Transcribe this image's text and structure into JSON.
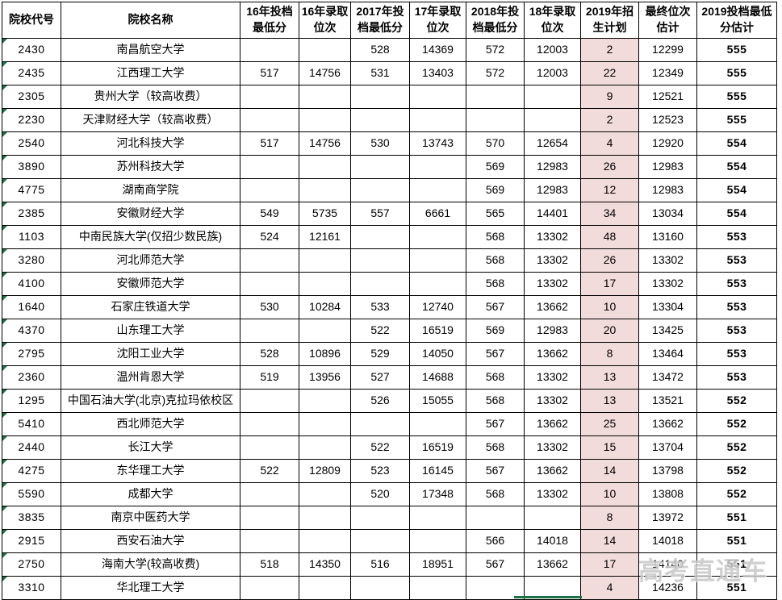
{
  "watermark": {
    "text": "高考直通车"
  },
  "colors": {
    "plan_column_bg": "#F2DCDB",
    "flag_green": "#1F7145",
    "border": "#000000",
    "watermark_gray": "#C9C9C9",
    "est_text": "#000000"
  },
  "table": {
    "columns": [
      {
        "id": "code",
        "label": "院校代号"
      },
      {
        "id": "name",
        "label": "院校名称"
      },
      {
        "id": "s16",
        "label": "16年投档最低分"
      },
      {
        "id": "r16",
        "label": "16年录取位次"
      },
      {
        "id": "s17",
        "label": "2017年投档最低分"
      },
      {
        "id": "r17",
        "label": "17年录取位次"
      },
      {
        "id": "s18",
        "label": "2018年投档最低分"
      },
      {
        "id": "r18",
        "label": "18年录取位次"
      },
      {
        "id": "plan19",
        "label": "2019年招生计划"
      },
      {
        "id": "rank_est",
        "label": "最终位次估计"
      },
      {
        "id": "score_est",
        "label": "2019投档最低分估计"
      }
    ],
    "rows": [
      {
        "code": "2430",
        "name": "南昌航空大学",
        "s16": "",
        "r16": "",
        "s17": "528",
        "r17": "14369",
        "s18": "572",
        "r18": "12003",
        "plan19": "2",
        "rank_est": "12299",
        "score_est": "555"
      },
      {
        "code": "2435",
        "name": "江西理工大学",
        "s16": "517",
        "r16": "14756",
        "s17": "531",
        "r17": "13403",
        "s18": "572",
        "r18": "12003",
        "plan19": "22",
        "rank_est": "12349",
        "score_est": "555"
      },
      {
        "code": "2305",
        "name": "贵州大学（较高收费）",
        "s16": "",
        "r16": "",
        "s17": "",
        "r17": "",
        "s18": "",
        "r18": "",
        "plan19": "9",
        "rank_est": "12521",
        "score_est": "555"
      },
      {
        "code": "2230",
        "name": "天津财经大学（较高收费）",
        "s16": "",
        "r16": "",
        "s17": "",
        "r17": "",
        "s18": "",
        "r18": "",
        "plan19": "2",
        "rank_est": "12523",
        "score_est": "555"
      },
      {
        "code": "2540",
        "name": "河北科技大学",
        "s16": "517",
        "r16": "14756",
        "s17": "530",
        "r17": "13743",
        "s18": "570",
        "r18": "12654",
        "plan19": "4",
        "rank_est": "12920",
        "score_est": "554"
      },
      {
        "code": "3890",
        "name": "苏州科技大学",
        "s16": "",
        "r16": "",
        "s17": "",
        "r17": "",
        "s18": "569",
        "r18": "12983",
        "plan19": "26",
        "rank_est": "12983",
        "score_est": "554"
      },
      {
        "code": "4775",
        "name": "湖南商学院",
        "s16": "",
        "r16": "",
        "s17": "",
        "r17": "",
        "s18": "569",
        "r18": "12983",
        "plan19": "12",
        "rank_est": "12983",
        "score_est": "554"
      },
      {
        "code": "2385",
        "name": "安徽财经大学",
        "s16": "549",
        "r16": "5735",
        "s17": "557",
        "r17": "6661",
        "s18": "565",
        "r18": "14401",
        "plan19": "34",
        "rank_est": "13034",
        "score_est": "554"
      },
      {
        "code": "1103",
        "name": "中南民族大学(仅招少数民族)",
        "s16": "524",
        "r16": "12161",
        "s17": "",
        "r17": "",
        "s18": "568",
        "r18": "13302",
        "plan19": "48",
        "rank_est": "13160",
        "score_est": "553"
      },
      {
        "code": "3280",
        "name": "河北师范大学",
        "s16": "",
        "r16": "",
        "s17": "",
        "r17": "",
        "s18": "568",
        "r18": "13302",
        "plan19": "26",
        "rank_est": "13302",
        "score_est": "553"
      },
      {
        "code": "4100",
        "name": "安徽师范大学",
        "s16": "",
        "r16": "",
        "s17": "",
        "r17": "",
        "s18": "568",
        "r18": "13302",
        "plan19": "17",
        "rank_est": "13302",
        "score_est": "553"
      },
      {
        "code": "1640",
        "name": "石家庄铁道大学",
        "s16": "530",
        "r16": "10284",
        "s17": "533",
        "r17": "12740",
        "s18": "567",
        "r18": "13662",
        "plan19": "10",
        "rank_est": "13304",
        "score_est": "553"
      },
      {
        "code": "4370",
        "name": "山东理工大学",
        "s16": "",
        "r16": "",
        "s17": "522",
        "r17": "16519",
        "s18": "569",
        "r18": "12983",
        "plan19": "20",
        "rank_est": "13425",
        "score_est": "553"
      },
      {
        "code": "2795",
        "name": "沈阳工业大学",
        "s16": "528",
        "r16": "10896",
        "s17": "529",
        "r17": "14050",
        "s18": "567",
        "r18": "13662",
        "plan19": "8",
        "rank_est": "13464",
        "score_est": "553"
      },
      {
        "code": "2360",
        "name": "温州肯恩大学",
        "s16": "519",
        "r16": "13956",
        "s17": "527",
        "r17": "14688",
        "s18": "568",
        "r18": "13302",
        "plan19": "13",
        "rank_est": "13472",
        "score_est": "553"
      },
      {
        "code": "1295",
        "name": "中国石油大学(北京)克拉玛依校区",
        "s16": "",
        "r16": "",
        "s17": "526",
        "r17": "15055",
        "s18": "568",
        "r18": "13302",
        "plan19": "13",
        "rank_est": "13521",
        "score_est": "552"
      },
      {
        "code": "5410",
        "name": "西北师范大学",
        "s16": "",
        "r16": "",
        "s17": "",
        "r17": "",
        "s18": "567",
        "r18": "13662",
        "plan19": "25",
        "rank_est": "13662",
        "score_est": "552"
      },
      {
        "code": "2440",
        "name": "长江大学",
        "s16": "",
        "r16": "",
        "s17": "522",
        "r17": "16519",
        "s18": "568",
        "r18": "13302",
        "plan19": "15",
        "rank_est": "13704",
        "score_est": "552"
      },
      {
        "code": "4275",
        "name": "东华理工大学",
        "s16": "522",
        "r16": "12809",
        "s17": "523",
        "r17": "16145",
        "s18": "567",
        "r18": "13662",
        "plan19": "14",
        "rank_est": "13798",
        "score_est": "552"
      },
      {
        "code": "5590",
        "name": "成都大学",
        "s16": "",
        "r16": "",
        "s17": "520",
        "r17": "17348",
        "s18": "568",
        "r18": "13302",
        "plan19": "10",
        "rank_est": "13808",
        "score_est": "552"
      },
      {
        "code": "3835",
        "name": "南京中医药大学",
        "s16": "",
        "r16": "",
        "s17": "",
        "r17": "",
        "s18": "",
        "r18": "",
        "plan19": "8",
        "rank_est": "13972",
        "score_est": "551"
      },
      {
        "code": "2915",
        "name": "西安石油大学",
        "s16": "",
        "r16": "",
        "s17": "",
        "r17": "",
        "s18": "566",
        "r18": "14018",
        "plan19": "14",
        "rank_est": "14018",
        "score_est": "551"
      },
      {
        "code": "2750",
        "name": "海南大学(较高收费)",
        "s16": "518",
        "r16": "14350",
        "s17": "516",
        "r17": "18951",
        "s18": "567",
        "r18": "13662",
        "plan19": "17",
        "rank_est": "14140",
        "score_est": "551"
      },
      {
        "code": "3310",
        "name": "华北理工大学",
        "s16": "",
        "r16": "",
        "s17": "",
        "r17": "",
        "s18": "",
        "r18": "",
        "plan19": "4",
        "rank_est": "14236",
        "score_est": "551"
      }
    ]
  }
}
